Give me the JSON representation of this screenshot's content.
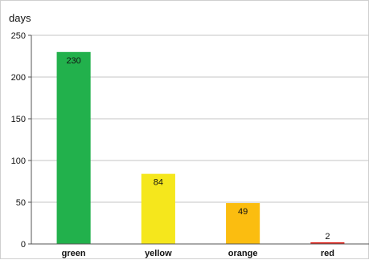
{
  "chart_data": {
    "type": "bar",
    "title": "",
    "xlabel": "",
    "ylabel": "days",
    "categories": [
      "green",
      "yellow",
      "orange",
      "red"
    ],
    "values": [
      230,
      84,
      49,
      2
    ],
    "data_labels": [
      "230",
      "84",
      "49",
      "2"
    ],
    "colors": [
      "#22b14c",
      "#f5e71c",
      "#fbbd10",
      "#e0241c"
    ],
    "ylim": [
      0,
      250
    ],
    "yticks": [
      0,
      50,
      100,
      150,
      200,
      250
    ],
    "ytick_labels": [
      "0",
      "50",
      "100",
      "150",
      "200",
      "250"
    ],
    "grid": true,
    "legend": "none"
  }
}
